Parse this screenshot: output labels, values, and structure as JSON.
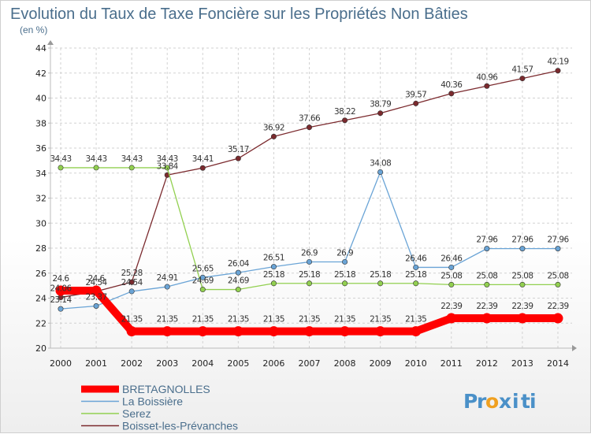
{
  "chart_data": {
    "type": "line",
    "title": "Evolution du Taux de Taxe Foncière sur les Propriétés Non Bâties",
    "subtitle": "(en %)",
    "xlabel": "",
    "ylabel": "",
    "categories": [
      "2000",
      "2001",
      "2002",
      "2003",
      "2004",
      "2005",
      "2006",
      "2007",
      "2008",
      "2009",
      "2010",
      "2011",
      "2012",
      "2013",
      "2014"
    ],
    "yticks": [
      "20",
      "22",
      "24",
      "26",
      "28",
      "30",
      "32",
      "34",
      "36",
      "38",
      "40",
      "42",
      "44"
    ],
    "ylim": [
      20,
      44
    ],
    "grid": true,
    "legend_position": "bottom-left",
    "series": [
      {
        "name": "Boisset-les-Prévanches",
        "color": "#7b2a2e",
        "values": [
          24.06,
          24.54,
          25.28,
          33.84,
          34.41,
          35.17,
          36.92,
          37.66,
          38.22,
          38.79,
          39.57,
          40.36,
          40.96,
          41.57,
          42.19
        ],
        "labels": [
          "24.06",
          "24.54",
          "25.28",
          "33.84",
          "34.41",
          "35.17",
          "36.92",
          "37.66",
          "38.22",
          "38.79",
          "39.57",
          "40.36",
          "40.96",
          "41.57",
          "42.19"
        ]
      },
      {
        "name": "La Boissière",
        "color": "#6aa4d6",
        "values": [
          23.14,
          23.37,
          24.54,
          24.91,
          25.65,
          26.04,
          26.51,
          26.9,
          26.9,
          34.08,
          26.46,
          26.46,
          27.96,
          27.96,
          27.96
        ],
        "labels": [
          "23.14",
          "23.37",
          "24.54",
          "24.91",
          "25.65",
          "26.04",
          "26.51",
          "26.9",
          "26.9",
          "34.08",
          "26.46",
          "26.46",
          "27.96",
          "27.96",
          "27.96"
        ]
      },
      {
        "name": "Serez",
        "color": "#92d050",
        "values": [
          34.43,
          34.43,
          34.43,
          34.43,
          24.69,
          24.69,
          25.18,
          25.18,
          25.18,
          25.18,
          25.18,
          25.08,
          25.08,
          25.08,
          25.08
        ],
        "labels": [
          "34.43",
          "34.43",
          "34.43",
          "34.43",
          "24.69",
          "24.69",
          "25.18",
          "25.18",
          "25.18",
          "25.18",
          "25.18",
          "25.08",
          "25.08",
          "25.08",
          "25.08"
        ]
      },
      {
        "name": "BRETAGNOLLES",
        "color": "#ff0000",
        "values": [
          24.6,
          24.6,
          21.35,
          21.35,
          21.35,
          21.35,
          21.35,
          21.35,
          21.35,
          21.35,
          21.35,
          22.39,
          22.39,
          22.39,
          22.39
        ],
        "labels": [
          "24.6",
          "24.6",
          "21.35",
          "21.35",
          "21.35",
          "21.35",
          "21.35",
          "21.35",
          "21.35",
          "21.35",
          "21.35",
          "22.39",
          "22.39",
          "22.39",
          "22.39"
        ]
      }
    ],
    "legend_order": [
      "BRETAGNOLLES",
      "La Boissière",
      "Serez",
      "Boisset-les-Prévanches"
    ]
  },
  "logo": {
    "letters": [
      "P",
      "r",
      "o",
      "x",
      "i",
      "t",
      "i"
    ],
    "colors": [
      "#4a90c8",
      "#4a90c8",
      "#f0a020",
      "#4a90c8",
      "#4a90c8",
      "#4a90c8",
      "#4a90c8"
    ]
  }
}
